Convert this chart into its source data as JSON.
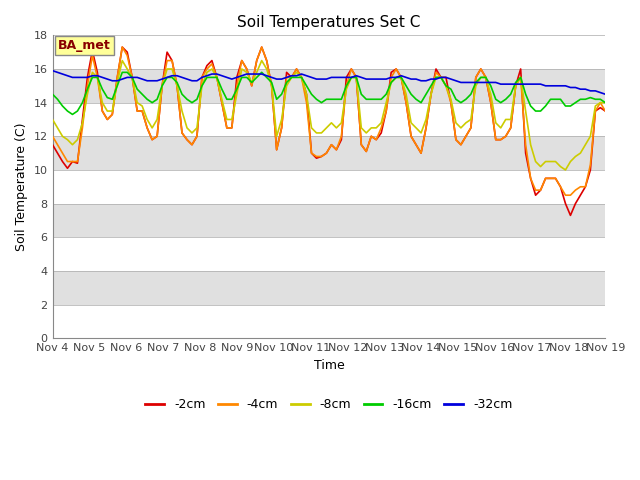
{
  "title": "Soil Temperatures Set C",
  "xlabel": "Time",
  "ylabel": "Soil Temperature (C)",
  "ylim": [
    0,
    18
  ],
  "yticks": [
    0,
    2,
    4,
    6,
    8,
    10,
    12,
    14,
    16,
    18
  ],
  "x_labels": [
    "Nov 4",
    "Nov 5",
    "Nov 6",
    "Nov 7",
    "Nov 8",
    "Nov 9",
    "Nov 10",
    "Nov 11",
    "Nov 12",
    "Nov 13",
    "Nov 14",
    "Nov 15",
    "Nov 16",
    "Nov 17",
    "Nov 18",
    "Nov 19"
  ],
  "legend_labels": [
    "-2cm",
    "-4cm",
    "-8cm",
    "-16cm",
    "-32cm"
  ],
  "legend_colors": [
    "#dd0000",
    "#ff8800",
    "#cccc00",
    "#00cc00",
    "#0000dd"
  ],
  "annotation_text": "BA_met",
  "annotation_color": "#880000",
  "annotation_bg": "#ffff99",
  "fig_bg": "#ffffff",
  "plot_bg": "#ffffff",
  "band_color": "#e0e0e0",
  "line_width": 1.2,
  "title_fontsize": 11,
  "axis_label_fontsize": 9,
  "tick_fontsize": 8,
  "legend_fontsize": 9,
  "annotation_fontsize": 9,
  "series": {
    "m2cm": [
      11.5,
      11.0,
      10.5,
      10.1,
      10.5,
      10.4,
      13.0,
      15.5,
      17.1,
      15.8,
      13.5,
      13.0,
      13.3,
      15.5,
      17.3,
      17.0,
      15.5,
      13.5,
      13.5,
      12.5,
      11.8,
      12.0,
      15.0,
      17.0,
      16.5,
      15.0,
      12.2,
      11.8,
      11.5,
      12.0,
      15.5,
      16.2,
      16.5,
      15.5,
      14.0,
      12.5,
      12.5,
      15.5,
      16.5,
      16.0,
      15.0,
      16.5,
      17.3,
      16.5,
      15.0,
      11.2,
      12.5,
      15.8,
      15.5,
      16.0,
      15.5,
      14.5,
      11.0,
      10.7,
      10.8,
      11.0,
      11.5,
      11.2,
      11.8,
      15.5,
      16.0,
      15.5,
      11.5,
      11.1,
      12.0,
      11.8,
      12.2,
      13.5,
      15.8,
      16.0,
      15.5,
      14.0,
      12.0,
      11.5,
      11.0,
      12.5,
      14.5,
      16.0,
      15.5,
      15.5,
      14.0,
      11.8,
      11.5,
      12.0,
      12.5,
      15.5,
      16.0,
      15.5,
      14.0,
      11.8,
      11.8,
      12.0,
      12.5,
      15.0,
      16.0,
      11.0,
      9.5,
      8.5,
      8.8,
      9.5,
      9.5,
      9.5,
      9.0,
      8.0,
      7.3,
      8.0,
      8.5,
      9.0,
      10.0,
      13.5,
      13.7,
      13.5
    ],
    "m4cm": [
      12.0,
      11.5,
      11.0,
      10.5,
      10.5,
      10.5,
      12.5,
      15.0,
      16.8,
      15.5,
      13.5,
      13.0,
      13.3,
      15.5,
      17.3,
      16.8,
      15.5,
      13.5,
      13.5,
      12.5,
      11.8,
      12.0,
      15.0,
      16.5,
      16.5,
      15.0,
      12.2,
      11.8,
      11.5,
      12.0,
      15.5,
      16.0,
      16.3,
      15.5,
      14.0,
      12.5,
      12.5,
      15.0,
      16.5,
      16.0,
      15.0,
      16.5,
      17.3,
      16.5,
      15.0,
      11.2,
      12.5,
      15.5,
      15.5,
      16.0,
      15.5,
      14.0,
      11.0,
      10.8,
      10.8,
      11.0,
      11.5,
      11.2,
      12.0,
      15.0,
      16.0,
      15.5,
      11.5,
      11.1,
      12.0,
      11.8,
      12.5,
      13.5,
      15.5,
      16.0,
      15.5,
      14.0,
      12.0,
      11.5,
      11.0,
      12.5,
      14.5,
      15.8,
      15.5,
      15.0,
      14.0,
      11.8,
      11.5,
      12.0,
      12.5,
      15.5,
      16.0,
      15.5,
      14.0,
      11.8,
      11.8,
      12.0,
      12.5,
      15.0,
      15.5,
      11.5,
      9.5,
      8.8,
      8.8,
      9.5,
      9.5,
      9.5,
      9.0,
      8.5,
      8.5,
      8.8,
      9.0,
      9.0,
      10.3,
      13.5,
      14.0,
      13.5
    ],
    "m8cm": [
      13.0,
      12.5,
      12.0,
      11.8,
      11.5,
      11.8,
      12.8,
      14.5,
      15.8,
      15.5,
      14.0,
      13.5,
      13.5,
      15.2,
      16.5,
      16.0,
      15.5,
      14.0,
      13.8,
      13.0,
      12.5,
      13.0,
      15.0,
      16.0,
      16.0,
      15.0,
      13.5,
      12.5,
      12.2,
      12.5,
      15.0,
      15.8,
      16.0,
      15.5,
      14.2,
      13.0,
      13.0,
      14.5,
      16.0,
      15.8,
      15.2,
      15.8,
      16.5,
      16.0,
      15.0,
      12.0,
      13.0,
      15.0,
      15.5,
      15.8,
      15.5,
      14.5,
      12.5,
      12.2,
      12.2,
      12.5,
      12.8,
      12.5,
      12.8,
      14.8,
      15.5,
      15.5,
      12.5,
      12.2,
      12.5,
      12.5,
      12.8,
      14.0,
      15.2,
      15.5,
      15.5,
      14.5,
      12.8,
      12.5,
      12.2,
      13.0,
      14.5,
      15.5,
      15.5,
      15.0,
      14.2,
      12.8,
      12.5,
      12.8,
      13.0,
      15.0,
      15.5,
      15.5,
      14.5,
      12.8,
      12.5,
      13.0,
      13.0,
      15.0,
      15.5,
      13.5,
      11.5,
      10.5,
      10.2,
      10.5,
      10.5,
      10.5,
      10.2,
      10.0,
      10.5,
      10.8,
      11.0,
      11.5,
      12.0,
      13.8,
      14.0,
      14.0
    ],
    "m16cm": [
      14.5,
      14.2,
      13.8,
      13.5,
      13.3,
      13.5,
      14.0,
      14.8,
      15.5,
      15.5,
      14.8,
      14.3,
      14.2,
      15.0,
      15.8,
      15.8,
      15.5,
      14.8,
      14.5,
      14.2,
      14.0,
      14.2,
      15.0,
      15.5,
      15.5,
      15.2,
      14.5,
      14.2,
      14.0,
      14.2,
      15.0,
      15.5,
      15.5,
      15.5,
      14.8,
      14.2,
      14.2,
      14.8,
      15.5,
      15.5,
      15.2,
      15.5,
      15.8,
      15.5,
      15.2,
      14.2,
      14.5,
      15.2,
      15.5,
      15.5,
      15.5,
      15.0,
      14.5,
      14.2,
      14.0,
      14.2,
      14.2,
      14.2,
      14.2,
      15.0,
      15.5,
      15.5,
      14.5,
      14.2,
      14.2,
      14.2,
      14.2,
      14.5,
      15.2,
      15.5,
      15.5,
      15.0,
      14.5,
      14.2,
      14.0,
      14.5,
      15.0,
      15.5,
      15.5,
      15.0,
      14.8,
      14.2,
      14.0,
      14.2,
      14.5,
      15.2,
      15.5,
      15.5,
      15.0,
      14.2,
      14.0,
      14.2,
      14.5,
      15.2,
      15.5,
      14.5,
      13.8,
      13.5,
      13.5,
      13.8,
      14.2,
      14.2,
      14.2,
      13.8,
      13.8,
      14.0,
      14.2,
      14.2,
      14.3,
      14.2,
      14.2,
      14.0
    ],
    "m32cm": [
      15.9,
      15.8,
      15.7,
      15.6,
      15.5,
      15.5,
      15.5,
      15.5,
      15.6,
      15.6,
      15.5,
      15.4,
      15.3,
      15.3,
      15.4,
      15.5,
      15.5,
      15.5,
      15.4,
      15.3,
      15.3,
      15.3,
      15.4,
      15.5,
      15.6,
      15.6,
      15.5,
      15.4,
      15.3,
      15.3,
      15.5,
      15.6,
      15.7,
      15.7,
      15.6,
      15.5,
      15.4,
      15.5,
      15.6,
      15.7,
      15.7,
      15.7,
      15.7,
      15.6,
      15.5,
      15.4,
      15.4,
      15.5,
      15.6,
      15.6,
      15.7,
      15.6,
      15.5,
      15.4,
      15.4,
      15.4,
      15.5,
      15.5,
      15.5,
      15.5,
      15.5,
      15.6,
      15.5,
      15.4,
      15.4,
      15.4,
      15.4,
      15.4,
      15.5,
      15.5,
      15.6,
      15.5,
      15.4,
      15.4,
      15.3,
      15.3,
      15.4,
      15.4,
      15.5,
      15.5,
      15.4,
      15.3,
      15.2,
      15.2,
      15.2,
      15.2,
      15.2,
      15.2,
      15.2,
      15.2,
      15.1,
      15.1,
      15.1,
      15.1,
      15.1,
      15.1,
      15.1,
      15.1,
      15.1,
      15.0,
      15.0,
      15.0,
      15.0,
      15.0,
      14.9,
      14.9,
      14.8,
      14.8,
      14.7,
      14.7,
      14.6,
      14.5
    ]
  }
}
